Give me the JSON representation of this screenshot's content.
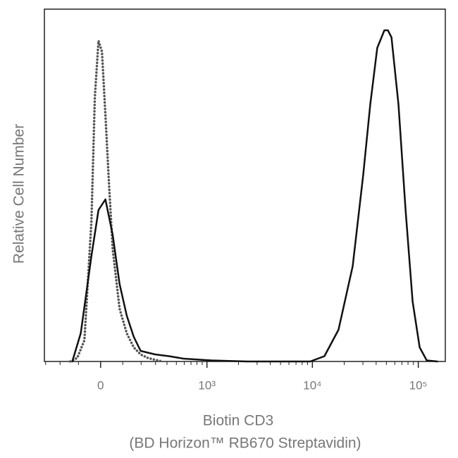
{
  "chart_data": {
    "type": "line",
    "xlabel": [
      "Biotin CD3",
      "(BD Horizon™ RB670  Streptavidin)"
    ],
    "ylabel": "Relative Cell Number",
    "xscale": "asinh",
    "xscale_width": 200,
    "xlim": [
      -310,
      180000
    ],
    "ylim": [
      0,
      100
    ],
    "xticks": [
      0,
      {
        "value": 1000,
        "label": "10³"
      },
      {
        "value": 10000,
        "label": "10⁴"
      },
      {
        "value": 100000,
        "label": "10⁵"
      }
    ],
    "xminor_ticks": [
      -300,
      -200,
      -100,
      100,
      200,
      300,
      400,
      500,
      600,
      700,
      800,
      900,
      2000,
      3000,
      4000,
      5000,
      6000,
      7000,
      8000,
      9000,
      20000,
      30000,
      40000,
      50000,
      60000,
      70000,
      80000,
      90000
    ],
    "series": [
      {
        "color": "#555555",
        "style": "dotted",
        "x": [
          -142,
          -106,
          -72,
          -40,
          -25,
          -9,
          6,
          21,
          37,
          53,
          85,
          120,
          157,
          197,
          243,
          354
        ],
        "values": [
          0,
          1,
          6,
          40,
          75,
          91,
          88,
          70,
          50,
          32,
          15,
          8,
          4,
          2,
          1,
          0
        ]
      },
      {
        "color": "#111111",
        "style": "solid",
        "x": [
          -131,
          -89,
          -40,
          -9,
          21,
          53,
          85,
          120,
          157,
          197,
          297,
          420,
          591,
          1100,
          2400,
          9540,
          12980,
          17640,
          24000,
          30200,
          35200,
          41000,
          47800,
          51600,
          55800,
          65000,
          75800,
          88400,
          103000,
          120200,
          151400
        ],
        "values": [
          0,
          8,
          30,
          43,
          46,
          36,
          22,
          13,
          7,
          3,
          2,
          1.5,
          0.8,
          0.3,
          0,
          0,
          1.5,
          9,
          27,
          53,
          73,
          89,
          94,
          94,
          92,
          73,
          43,
          17,
          4,
          0.3,
          0
        ]
      }
    ]
  }
}
